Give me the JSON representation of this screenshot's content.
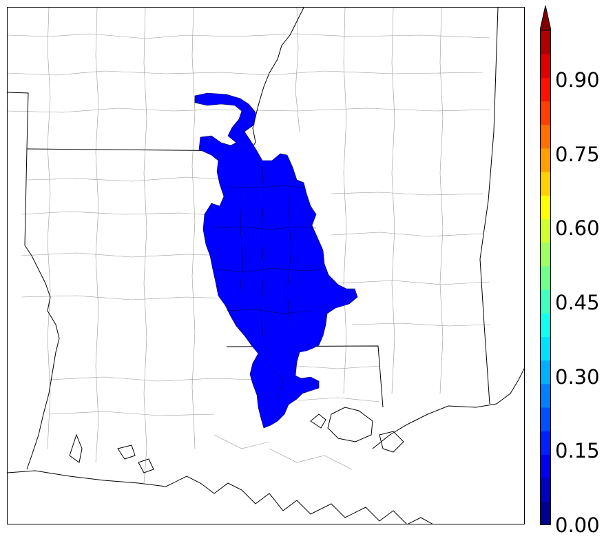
{
  "map": {
    "region": "Arkansas / Louisiana / Mississippi",
    "fill_color": "#0000ff",
    "coast_color": "#000000",
    "boundary_color": "#999999",
    "fill_value": 0.15
  },
  "colorbar": {
    "min": 0.0,
    "max": 1.0,
    "extend": "max",
    "levels": [
      0.0,
      0.05,
      0.1,
      0.15,
      0.2,
      0.25,
      0.3,
      0.35,
      0.4,
      0.45,
      0.5,
      0.55,
      0.6,
      0.65,
      0.7,
      0.75,
      0.8,
      0.85,
      0.9,
      0.95,
      1.0
    ],
    "colors": [
      "#00008f",
      "#0000bf",
      "#0000ef",
      "#0020ff",
      "#0050ff",
      "#0080ff",
      "#00b0ff",
      "#00e0ff",
      "#10fff0",
      "#40ffbf",
      "#70ff8f",
      "#a0ff60",
      "#d0ff30",
      "#ffff00",
      "#ffd000",
      "#ffa000",
      "#ff7000",
      "#ff4000",
      "#ff1000",
      "#df0000",
      "#af0000"
    ],
    "extend_color": "#800000",
    "tick_values": [
      0.0,
      0.15,
      0.3,
      0.45,
      0.6,
      0.75,
      0.9
    ],
    "tick_labels": [
      "0.00",
      "0.15",
      "0.30",
      "0.45",
      "0.60",
      "0.75",
      "0.90"
    ]
  }
}
